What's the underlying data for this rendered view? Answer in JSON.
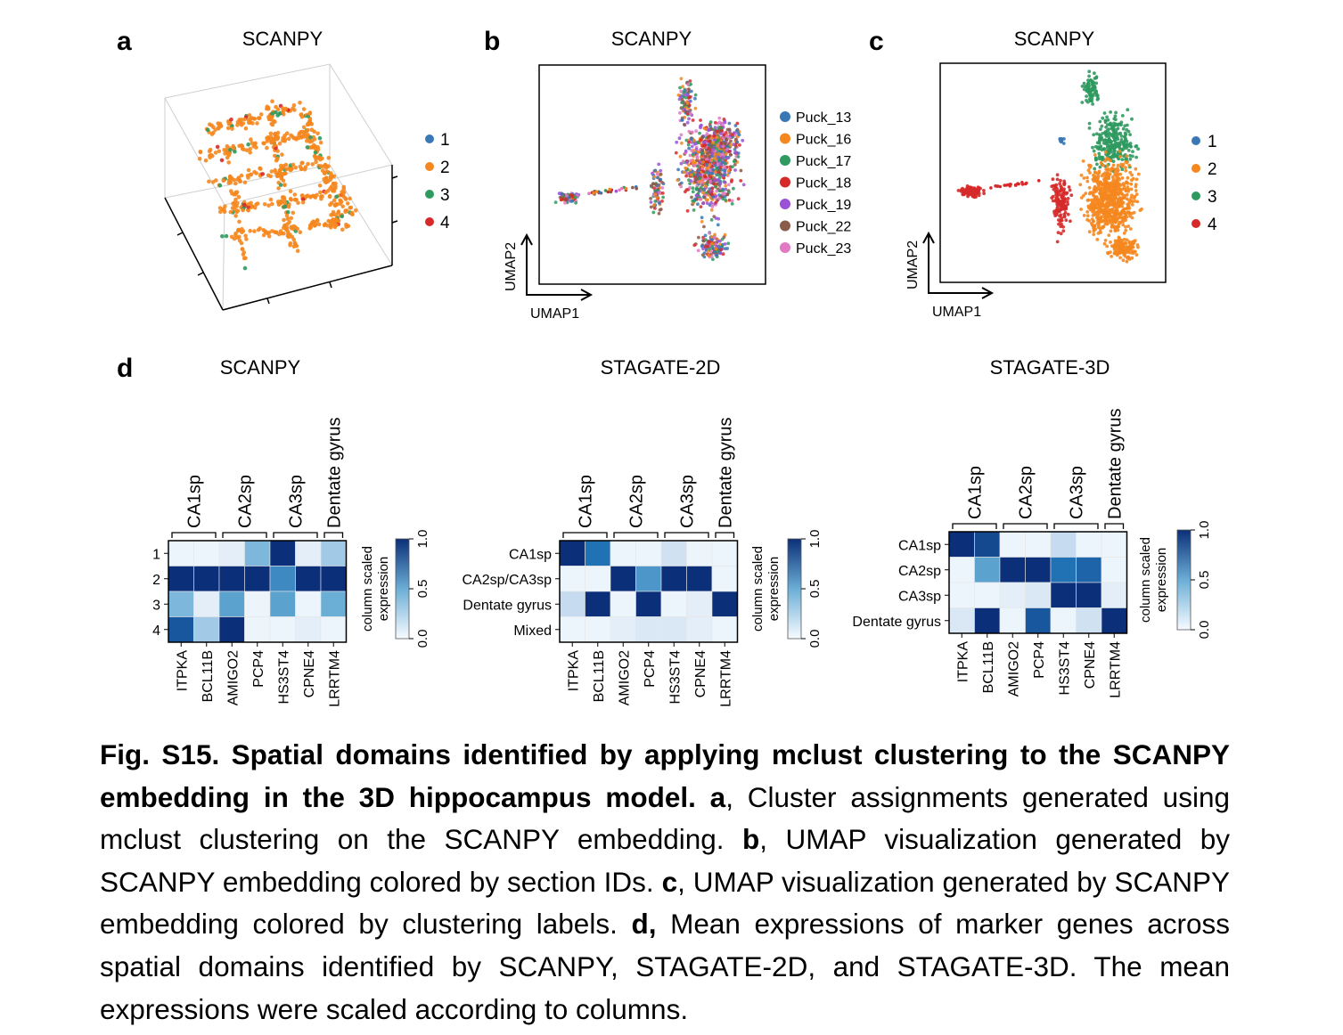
{
  "figure": {
    "panel_letters": {
      "a": "a",
      "b": "b",
      "c": "c",
      "d": "d"
    },
    "colors": {
      "cluster": {
        "1": "#3a78b5",
        "2": "#f5871f",
        "3": "#2f9a5f",
        "4": "#d62a2a"
      },
      "puck": [
        "#3a78b5",
        "#f5871f",
        "#2f9a5f",
        "#d62a2a",
        "#9a52d6",
        "#8a5a4a",
        "#e27ac3"
      ],
      "heat_low": "#f7fbff",
      "heat_high": "#0b2f78"
    },
    "panel_a": {
      "title": "SCANPY",
      "legend": [
        "1",
        "2",
        "3",
        "4"
      ]
    },
    "panel_b": {
      "title": "SCANPY",
      "xlabel": "UMAP1",
      "ylabel": "UMAP2",
      "legend": [
        "Puck_13",
        "Puck_16",
        "Puck_17",
        "Puck_18",
        "Puck_19",
        "Puck_22",
        "Puck_23"
      ]
    },
    "panel_c": {
      "title": "SCANPY",
      "xlabel": "UMAP1",
      "ylabel": "UMAP2",
      "legend": [
        "1",
        "2",
        "3",
        "4"
      ]
    },
    "heatmaps": [
      {
        "title": "SCANPY",
        "groups": [
          "CA1sp",
          "CA2sp",
          "CA3sp",
          "Dentate gyrus"
        ],
        "rows": [
          "1",
          "2",
          "3",
          "4"
        ],
        "columns": [
          "ITPKA",
          "BCL11B",
          "AMIGO2",
          "PCP4",
          "HS3ST4",
          "CPNE4",
          "LRRTM4"
        ],
        "colorbar_label": [
          "column scaled",
          "expression"
        ],
        "colorbar_ticks": [
          "0.0",
          "0.5",
          "1.0"
        ]
      },
      {
        "title": "STAGATE-2D",
        "groups": [
          "CA1sp",
          "CA2sp",
          "CA3sp",
          "Dentate gyrus"
        ],
        "rows": [
          "CA1sp",
          "CA2sp/CA3sp",
          "Dentate gyrus",
          "Mixed"
        ],
        "columns": [
          "ITPKA",
          "BCL11B",
          "AMIGO2",
          "PCP4",
          "HS3ST4",
          "CPNE4",
          "LRRTM4"
        ],
        "colorbar_label": [
          "column scaled",
          "expression"
        ],
        "colorbar_ticks": [
          "0.0",
          "0.5",
          "1.0"
        ]
      },
      {
        "title": "STAGATE-3D",
        "groups": [
          "CA1sp",
          "CA2sp",
          "CA3sp",
          "Dentate gyrus"
        ],
        "rows": [
          "CA1sp",
          "CA2sp",
          "CA3sp",
          "Dentate gyrus"
        ],
        "columns": [
          "ITPKA",
          "BCL11B",
          "AMIGO2",
          "PCP4",
          "HS3ST4",
          "CPNE4",
          "LRRTM4"
        ],
        "colorbar_label": [
          "column scaled",
          "expression"
        ],
        "colorbar_ticks": [
          "0.0",
          "0.5",
          "1.0"
        ]
      }
    ]
  },
  "chart_data": [
    {
      "type": "heatmap",
      "title": "SCANPY",
      "rows": [
        "1",
        "2",
        "3",
        "4"
      ],
      "columns": [
        "ITPKA",
        "BCL11B",
        "AMIGO2",
        "PCP4",
        "HS3ST4",
        "CPNE4",
        "LRRTM4"
      ],
      "values": [
        [
          0.05,
          0.05,
          0.1,
          0.45,
          1.0,
          0.1,
          0.35
        ],
        [
          1.0,
          1.0,
          1.0,
          1.0,
          0.65,
          1.0,
          1.0
        ],
        [
          0.45,
          0.1,
          0.55,
          0.05,
          0.55,
          0.05,
          0.5
        ],
        [
          0.85,
          0.35,
          1.0,
          0.05,
          0.05,
          0.1,
          0.05
        ]
      ],
      "zlim": [
        0,
        1
      ]
    },
    {
      "type": "heatmap",
      "title": "STAGATE-2D",
      "rows": [
        "CA1sp",
        "CA2sp/CA3sp",
        "Dentate gyrus",
        "Mixed"
      ],
      "columns": [
        "ITPKA",
        "BCL11B",
        "AMIGO2",
        "PCP4",
        "HS3ST4",
        "CPNE4",
        "LRRTM4"
      ],
      "values": [
        [
          1.0,
          0.75,
          0.05,
          0.05,
          0.2,
          0.05,
          0.05
        ],
        [
          0.05,
          0.05,
          1.0,
          0.6,
          1.0,
          1.0,
          0.05
        ],
        [
          0.25,
          1.0,
          0.05,
          1.0,
          0.05,
          0.1,
          1.0
        ],
        [
          0.05,
          0.05,
          0.1,
          0.15,
          0.15,
          0.1,
          0.05
        ]
      ],
      "zlim": [
        0,
        1
      ]
    },
    {
      "type": "heatmap",
      "title": "STAGATE-3D",
      "rows": [
        "CA1sp",
        "CA2sp",
        "CA3sp",
        "Dentate gyrus"
      ],
      "columns": [
        "ITPKA",
        "BCL11B",
        "AMIGO2",
        "PCP4",
        "HS3ST4",
        "CPNE4",
        "LRRTM4"
      ],
      "values": [
        [
          1.0,
          0.9,
          0.05,
          0.05,
          0.25,
          0.05,
          0.05
        ],
        [
          0.05,
          0.55,
          1.0,
          1.0,
          0.75,
          0.8,
          0.05
        ],
        [
          0.05,
          0.05,
          0.1,
          0.15,
          1.0,
          1.0,
          0.1
        ],
        [
          0.15,
          1.0,
          0.05,
          0.85,
          0.05,
          0.2,
          1.0
        ]
      ],
      "zlim": [
        0,
        1
      ]
    }
  ],
  "caption": {
    "fig_label": "Fig. S15. Spatial domains identified by applying mclust clustering to the SCANPY embedding in the 3D hippocampus model.",
    "a_letter": "a",
    "a_text": ", Cluster assignments generated using mclust clustering on the SCANPY embedding.",
    "b_letter": "b",
    "b_text": ", UMAP visualization generated by SCANPY embedding colored by section IDs.",
    "c_letter": "c",
    "c_text": ", UMAP visualization generated by SCANPY embedding colored by clustering labels.",
    "d_letter": "d,",
    "d_text": " Mean expressions of marker genes across spatial domains identified by SCANPY, STAGATE-2D, and STAGATE-3D. The mean expressions were scaled according to columns."
  }
}
